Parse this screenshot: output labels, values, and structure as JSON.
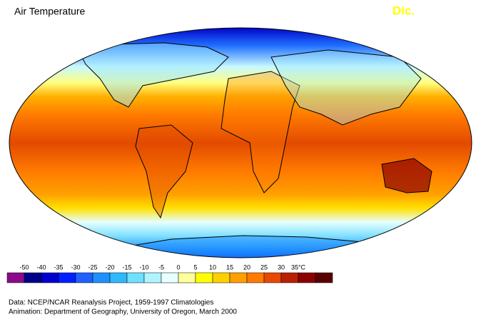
{
  "header": {
    "title": "Air Temperature",
    "month": "Dic."
  },
  "legend": {
    "ticks": [
      -50,
      -40,
      -35,
      -30,
      -25,
      -20,
      -15,
      -10,
      -5,
      0,
      5,
      10,
      15,
      20,
      25,
      30,
      {
        "value": 35,
        "label": "35°C"
      }
    ],
    "colors": [
      "#8b0a8b",
      "#00008b",
      "#0000d0",
      "#0020ff",
      "#2060ff",
      "#2090ff",
      "#30b8ff",
      "#70e0ff",
      "#b0f4ff",
      "#e6ffff",
      "#ffff9a",
      "#ffff00",
      "#ffd000",
      "#ffa000",
      "#ff7a00",
      "#e84800",
      "#b82000",
      "#8b0000",
      "#5a0000"
    ]
  },
  "footer": {
    "data": "Data:  NCEP/NCAR Reanalysis Project, 1959-1997 Climatologies",
    "animation": "Animation:  Department of Geography, University of Oregon, March 2000"
  }
}
